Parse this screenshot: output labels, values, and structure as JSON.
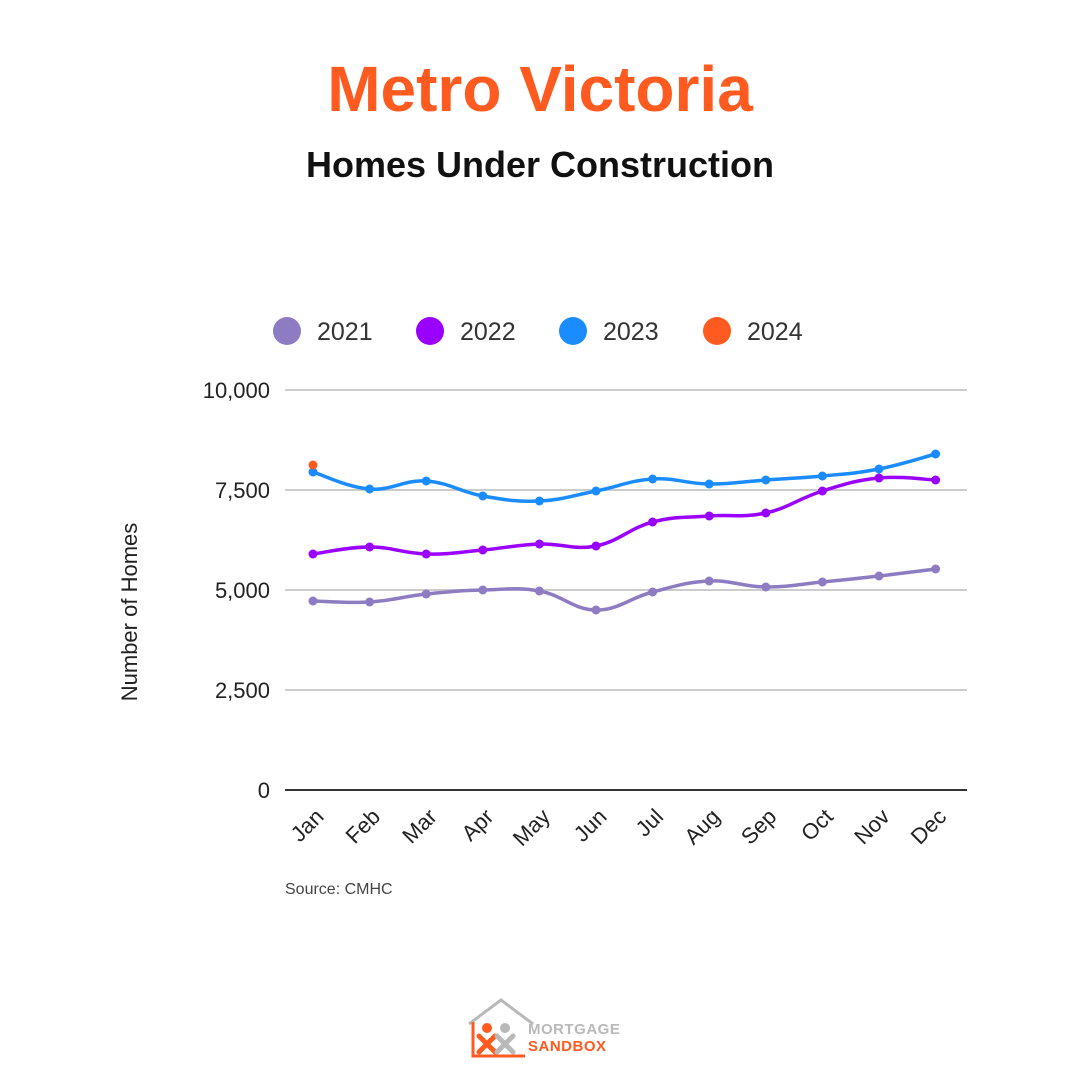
{
  "header": {
    "title": "Metro Victoria",
    "subtitle": "Homes Under Construction"
  },
  "footer": {
    "source": "Source: CMHC",
    "logo_line1": "MORTGAGE",
    "logo_line2": "SANDBOX"
  },
  "colors": {
    "title": "#ff5a1f",
    "grid": "#cccccc",
    "axis": "#333333"
  },
  "chart_data": {
    "type": "line",
    "title": "Homes Under Construction",
    "xlabel": "",
    "ylabel": "Number of Homes",
    "ylim": [
      0,
      10000
    ],
    "yticks": [
      0,
      2500,
      5000,
      7500,
      10000
    ],
    "ytick_labels": [
      "0",
      "2,500",
      "5,000",
      "7,500",
      "10,000"
    ],
    "categories": [
      "Jan",
      "Feb",
      "Mar",
      "Apr",
      "May",
      "Jun",
      "Jul",
      "Aug",
      "Sep",
      "Oct",
      "Nov",
      "Dec"
    ],
    "grid": true,
    "legend_position": "top",
    "series": [
      {
        "name": "2021",
        "color": "#8e7cc3",
        "values": [
          4725,
          4700,
          4900,
          5000,
          4975,
          4500,
          4950,
          5225,
          5075,
          5200,
          5350,
          5525
        ]
      },
      {
        "name": "2022",
        "color": "#9900ff",
        "values": [
          5900,
          6075,
          5900,
          6000,
          6150,
          6100,
          6700,
          6850,
          6925,
          7475,
          7800,
          7750
        ]
      },
      {
        "name": "2023",
        "color": "#1a8cff",
        "values": [
          7950,
          7525,
          7725,
          7350,
          7225,
          7475,
          7775,
          7650,
          7750,
          7850,
          8025,
          8400
        ]
      },
      {
        "name": "2024",
        "color": "#ff5a1f",
        "values": [
          8125,
          null,
          null,
          null,
          null,
          null,
          null,
          null,
          null,
          null,
          null,
          null
        ]
      }
    ]
  }
}
